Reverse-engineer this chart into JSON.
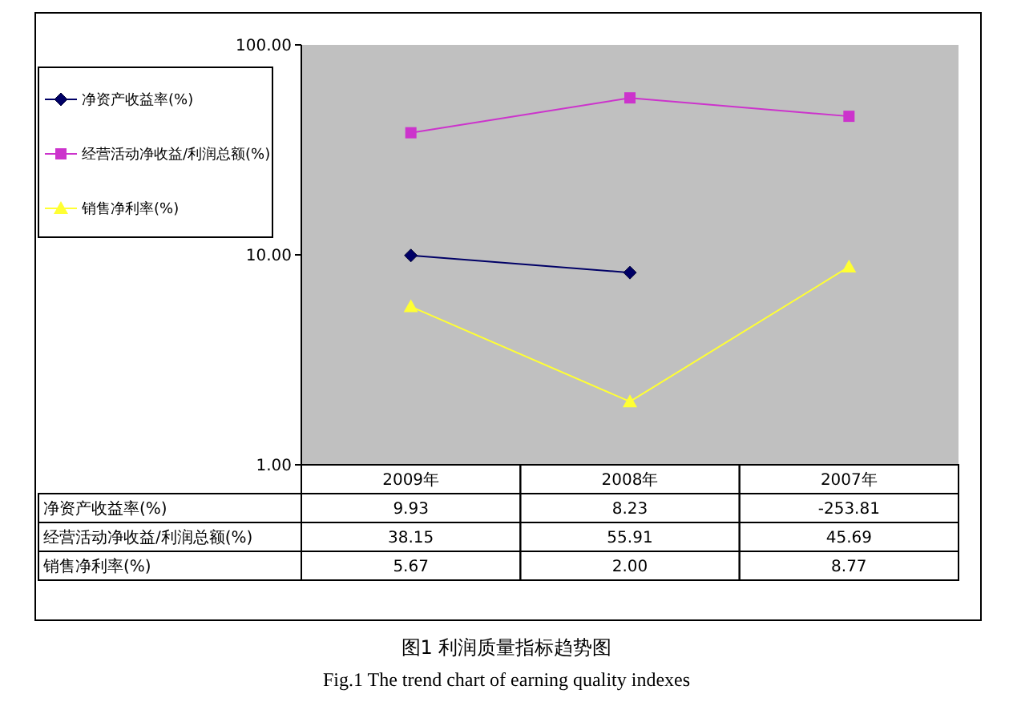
{
  "chart_data": {
    "type": "line",
    "title": "图1  利润质量指标趋势图",
    "subtitle": "Fig.1 The trend chart of earning quality indexes",
    "categories": [
      "2009年",
      "2008年",
      "2007年"
    ],
    "series": [
      {
        "name": "净资产收益率(%)",
        "color": "#000066",
        "marker": "diamond",
        "values": [
          9.93,
          8.23,
          null
        ],
        "value_labels": [
          "9.93",
          "8.23",
          "-253.81"
        ]
      },
      {
        "name": "经营活动净收益/利润总额(%)",
        "color": "#cc33cc",
        "marker": "square",
        "values": [
          38.15,
          55.91,
          45.69
        ],
        "value_labels": [
          "38.15",
          "55.91",
          "45.69"
        ]
      },
      {
        "name": "销售净利率(%)",
        "color": "#ffff33",
        "marker": "triangle",
        "values": [
          5.67,
          2.0,
          8.77
        ],
        "value_labels": [
          "5.67",
          "2.00",
          "8.77"
        ]
      }
    ],
    "log": true,
    "ylim": [
      1,
      100
    ],
    "yticks": [
      {
        "value": 1,
        "label": "1.00"
      },
      {
        "value": 10,
        "label": "10.00"
      },
      {
        "value": 100,
        "label": "100.00"
      }
    ],
    "grid": false,
    "legend": "left"
  }
}
